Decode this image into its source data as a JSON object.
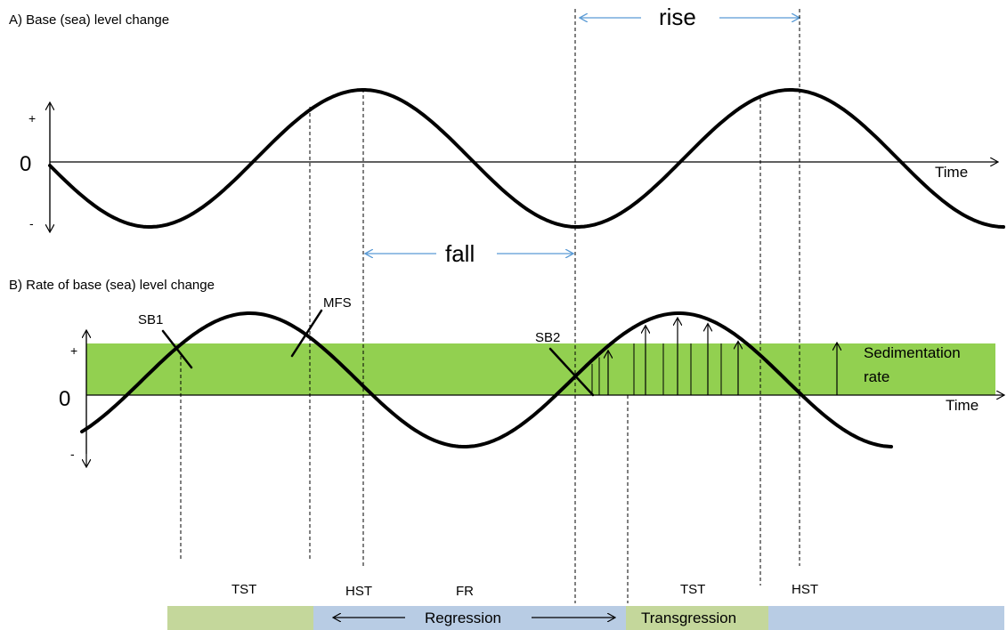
{
  "panel_a": {
    "title": "A) Base (sea) level change",
    "plus": "+",
    "zero": "0",
    "minus": "-",
    "axis_label": "Time",
    "rise_label": "rise",
    "fall_label": "fall"
  },
  "panel_b": {
    "title": "B) Rate of base (sea) level change",
    "plus": "+",
    "zero": "0",
    "minus": "-",
    "axis_label": "Time",
    "sb1": "SB1",
    "mfs": "MFS",
    "sb2": "SB2",
    "sed_line1": "Sedimentation",
    "sed_line2": "rate"
  },
  "system_tracts": {
    "tst1": "TST",
    "hst1": "HST",
    "fr": "FR",
    "tst2": "TST",
    "hst2": "HST"
  },
  "bottom_bar": {
    "regression": "Regression",
    "transgression": "Transgression"
  },
  "colors": {
    "sedimentation_band": "#92d050",
    "bar_green": "#c4d79b",
    "bar_blue": "#b8cce4",
    "arrow_blue": "#5b9bd5",
    "curve": "#000000"
  }
}
